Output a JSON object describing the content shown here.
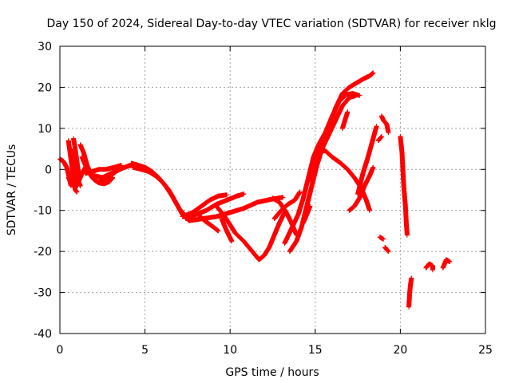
{
  "colors": {
    "series": "#ff0000",
    "grid": "#a0a0a0",
    "axis": "#000000"
  },
  "chart_data": {
    "type": "scatter",
    "title": "Day 150 of 2024, Sidereal Day-to-day VTEC variation (SDTVAR) for receiver nklg",
    "xlabel": "GPS time / hours",
    "ylabel": "SDTVAR / TECUs",
    "xlim": [
      0,
      25
    ],
    "ylim": [
      -40,
      30
    ],
    "xticks": [
      0,
      5,
      10,
      15,
      20,
      25
    ],
    "yticks": [
      -40,
      -30,
      -20,
      -10,
      0,
      10,
      20,
      30
    ],
    "grid": true,
    "marker": "+",
    "series": [
      {
        "name": "SDTVAR",
        "tracks": [
          [
            [
              0.0,
              2.5
            ],
            [
              0.2,
              2.0
            ],
            [
              0.4,
              0.5
            ],
            [
              0.55,
              -2.0
            ],
            [
              0.65,
              -4.0
            ]
          ],
          [
            [
              0.5,
              7.0
            ],
            [
              0.6,
              4.0
            ],
            [
              0.7,
              1.0
            ],
            [
              0.8,
              -2.0
            ],
            [
              0.9,
              -5.0
            ],
            [
              1.0,
              -5.5
            ]
          ],
          [
            [
              0.6,
              5.0
            ],
            [
              0.8,
              3.0
            ],
            [
              1.0,
              0.0
            ],
            [
              1.1,
              -3.0
            ],
            [
              1.2,
              -4.0
            ]
          ],
          [
            [
              0.8,
              7.5
            ],
            [
              0.9,
              5.0
            ],
            [
              1.0,
              2.0
            ],
            [
              1.1,
              -1.0
            ]
          ],
          [
            [
              0.5,
              -2.0
            ],
            [
              0.7,
              -3.5
            ],
            [
              0.9,
              -4.5
            ],
            [
              1.1,
              -3.0
            ],
            [
              1.3,
              -1.0
            ],
            [
              1.5,
              0.5
            ]
          ],
          [
            [
              1.2,
              6.0
            ],
            [
              1.4,
              4.0
            ],
            [
              1.6,
              1.0
            ],
            [
              1.8,
              -1.0
            ],
            [
              2.0,
              -2.5
            ],
            [
              2.3,
              -3.3
            ],
            [
              2.6,
              -3.5
            ],
            [
              2.9,
              -3.0
            ],
            [
              3.1,
              -2.0
            ]
          ],
          [
            [
              1.3,
              3.0
            ],
            [
              1.6,
              0.0
            ],
            [
              1.9,
              -2.0
            ],
            [
              2.2,
              -3.0
            ],
            [
              2.6,
              -3.0
            ],
            [
              3.0,
              -1.5
            ],
            [
              3.3,
              -0.5
            ],
            [
              3.6,
              0.2
            ]
          ],
          [
            [
              1.5,
              -1.0
            ],
            [
              1.9,
              -0.5
            ],
            [
              2.3,
              0.0
            ],
            [
              2.7,
              0.0
            ],
            [
              3.2,
              0.5
            ],
            [
              3.6,
              1.0
            ]
          ],
          [
            [
              2.0,
              -1.5
            ],
            [
              2.5,
              -2.0
            ],
            [
              3.0,
              -1.0
            ],
            [
              3.5,
              0.0
            ],
            [
              4.0,
              0.8
            ],
            [
              4.5,
              1.2
            ]
          ],
          [
            [
              4.2,
              1.5
            ],
            [
              4.6,
              1.0
            ],
            [
              5.0,
              0.5
            ],
            [
              5.4,
              -0.5
            ],
            [
              5.8,
              -2.0
            ],
            [
              6.2,
              -4.0
            ],
            [
              6.6,
              -6.5
            ],
            [
              7.0,
              -9.5
            ],
            [
              7.4,
              -11.5
            ],
            [
              7.8,
              -12.2
            ]
          ],
          [
            [
              4.3,
              0.5
            ],
            [
              4.8,
              0.0
            ],
            [
              5.2,
              -0.5
            ],
            [
              5.6,
              -1.5
            ],
            [
              6.0,
              -3.0
            ],
            [
              6.4,
              -5.0
            ],
            [
              6.8,
              -8.0
            ],
            [
              7.2,
              -11.0
            ],
            [
              7.6,
              -12.5
            ]
          ],
          [
            [
              7.2,
              -11.5
            ],
            [
              7.8,
              -10.5
            ],
            [
              8.3,
              -9.0
            ],
            [
              8.8,
              -7.5
            ],
            [
              9.3,
              -6.5
            ],
            [
              9.8,
              -6.2
            ]
          ],
          [
            [
              7.4,
              -12.0
            ],
            [
              8.0,
              -11.0
            ],
            [
              8.6,
              -10.0
            ],
            [
              9.2,
              -8.5
            ],
            [
              9.8,
              -7.5
            ],
            [
              10.4,
              -6.5
            ],
            [
              10.8,
              -6.0
            ]
          ],
          [
            [
              7.6,
              -12.5
            ],
            [
              8.4,
              -12.0
            ],
            [
              9.2,
              -11.5
            ],
            [
              10.0,
              -10.5
            ],
            [
              10.8,
              -9.5
            ],
            [
              11.6,
              -8.0
            ],
            [
              12.4,
              -7.3
            ],
            [
              13.1,
              -6.8
            ]
          ],
          [
            [
              8.0,
              -10.5
            ],
            [
              8.5,
              -12.5
            ],
            [
              9.0,
              -14.0
            ],
            [
              9.3,
              -15.0
            ]
          ],
          [
            [
              9.2,
              -9.0
            ],
            [
              9.6,
              -11.0
            ],
            [
              10.0,
              -13.5
            ],
            [
              10.3,
              -15.5
            ],
            [
              10.8,
              -17.5
            ],
            [
              11.3,
              -20.0
            ],
            [
              11.7,
              -22.0
            ],
            [
              12.0,
              -21.0
            ],
            [
              12.3,
              -19.0
            ],
            [
              12.6,
              -16.0
            ],
            [
              12.9,
              -13.0
            ],
            [
              13.2,
              -10.5
            ]
          ],
          [
            [
              9.5,
              -12.0
            ],
            [
              9.8,
              -15.0
            ],
            [
              10.1,
              -17.5
            ]
          ],
          [
            [
              12.5,
              -7.0
            ],
            [
              12.9,
              -8.0
            ],
            [
              13.3,
              -10.5
            ],
            [
              13.6,
              -13.0
            ],
            [
              13.9,
              -16.0
            ]
          ],
          [
            [
              12.6,
              -12.0
            ],
            [
              13.0,
              -10.0
            ],
            [
              13.4,
              -8.5
            ],
            [
              13.8,
              -7.5
            ],
            [
              14.1,
              -5.5
            ]
          ],
          [
            [
              13.2,
              -18.0
            ],
            [
              13.6,
              -14.5
            ],
            [
              14.0,
              -11.0
            ],
            [
              14.3,
              -7.0
            ],
            [
              14.6,
              -2.0
            ],
            [
              14.9,
              3.0
            ],
            [
              15.2,
              6.0
            ],
            [
              15.6,
              9.0
            ],
            [
              16.0,
              13.0
            ],
            [
              16.4,
              16.5
            ],
            [
              16.8,
              18.2
            ],
            [
              17.2,
              18.5
            ],
            [
              17.6,
              18.0
            ]
          ],
          [
            [
              13.5,
              -20.0
            ],
            [
              13.9,
              -17.5
            ],
            [
              14.2,
              -14.0
            ],
            [
              14.5,
              -9.0
            ],
            [
              14.8,
              -4.0
            ],
            [
              15.1,
              1.0
            ],
            [
              15.4,
              5.0
            ],
            [
              15.8,
              8.5
            ],
            [
              16.2,
              12.0
            ],
            [
              16.6,
              15.5
            ],
            [
              17.0,
              17.5
            ],
            [
              17.4,
              18.0
            ]
          ],
          [
            [
              14.3,
              -13.0
            ],
            [
              14.5,
              -11.0
            ],
            [
              14.7,
              -9.0
            ]
          ],
          [
            [
              14.6,
              -3.0
            ],
            [
              15.0,
              3.0
            ],
            [
              15.4,
              7.0
            ],
            [
              15.8,
              10.0
            ],
            [
              16.2,
              15.0
            ],
            [
              16.6,
              18.5
            ],
            [
              17.0,
              20.0
            ],
            [
              17.4,
              21.0
            ],
            [
              17.8,
              22.0
            ],
            [
              18.2,
              22.8
            ],
            [
              18.4,
              23.5
            ]
          ],
          [
            [
              15.2,
              4.5
            ],
            [
              15.6,
              4.5
            ],
            [
              16.0,
              3.0
            ],
            [
              16.5,
              1.5
            ],
            [
              16.9,
              0.0
            ],
            [
              17.3,
              -2.0
            ],
            [
              17.7,
              -4.5
            ],
            [
              18.0,
              -7.5
            ],
            [
              18.2,
              -10.0
            ]
          ],
          [
            [
              17.0,
              -10.0
            ],
            [
              17.3,
              -9.0
            ],
            [
              17.6,
              -7.0
            ],
            [
              17.9,
              -4.0
            ],
            [
              18.2,
              -1.5
            ],
            [
              18.4,
              0.5
            ]
          ],
          [
            [
              16.6,
              10.0
            ],
            [
              16.9,
              14.0
            ]
          ],
          [
            [
              17.5,
              -6.0
            ],
            [
              17.8,
              -1.0
            ],
            [
              18.1,
              3.0
            ],
            [
              18.4,
              7.5
            ],
            [
              18.6,
              10.5
            ]
          ],
          [
            [
              18.9,
              13.0
            ],
            [
              19.0,
              12.0
            ],
            [
              19.2,
              11.0
            ],
            [
              19.3,
              9.0
            ]
          ],
          [
            [
              18.7,
              7.0
            ],
            [
              18.9,
              8.0
            ]
          ],
          [
            [
              18.8,
              -16.5
            ],
            [
              19.0,
              -17.0
            ]
          ],
          [
            [
              19.1,
              -19.0
            ],
            [
              19.2,
              -19.5
            ],
            [
              19.3,
              -20.0
            ]
          ],
          [
            [
              20.0,
              8.0
            ],
            [
              20.1,
              4.0
            ],
            [
              20.15,
              0.0
            ],
            [
              20.2,
              -4.0
            ],
            [
              20.3,
              -9.0
            ],
            [
              20.35,
              -13.0
            ],
            [
              20.4,
              -16.0
            ]
          ],
          [
            [
              20.5,
              -33.5
            ],
            [
              20.55,
              -30.0
            ],
            [
              20.6,
              -28.0
            ],
            [
              20.65,
              -26.5
            ]
          ],
          [
            [
              21.5,
              -24.0
            ],
            [
              21.7,
              -23.0
            ],
            [
              21.9,
              -23.5
            ],
            [
              21.9,
              -24.5
            ]
          ],
          [
            [
              22.5,
              -24.0
            ],
            [
              22.6,
              -23.0
            ],
            [
              22.7,
              -22.0
            ],
            [
              22.9,
              -22.5
            ]
          ]
        ]
      }
    ]
  }
}
